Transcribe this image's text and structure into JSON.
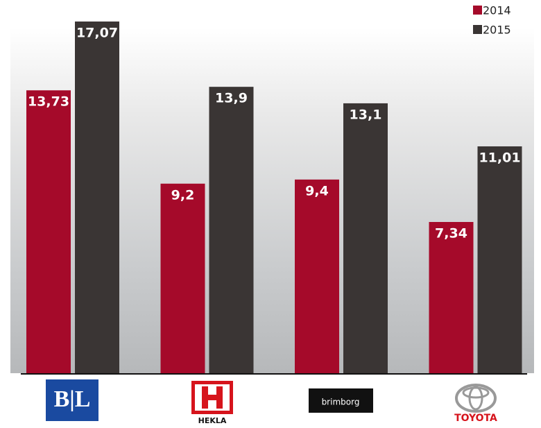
{
  "chart_data": {
    "type": "bar",
    "categories": [
      "B|L",
      "HEKLA",
      "brimborg",
      "TOYOTA"
    ],
    "series": [
      {
        "name": "2014",
        "color": "#a50a2a",
        "values": [
          13.73,
          9.2,
          9.4,
          7.34
        ],
        "value_labels": [
          "13,73",
          "9,2",
          "9,4",
          "7,34"
        ]
      },
      {
        "name": "2015",
        "color": "#3a3534",
        "values": [
          17.07,
          13.9,
          13.1,
          11.01
        ],
        "value_labels": [
          "17,07",
          "13,9",
          "13,1",
          "11,01"
        ]
      }
    ]
  }
}
